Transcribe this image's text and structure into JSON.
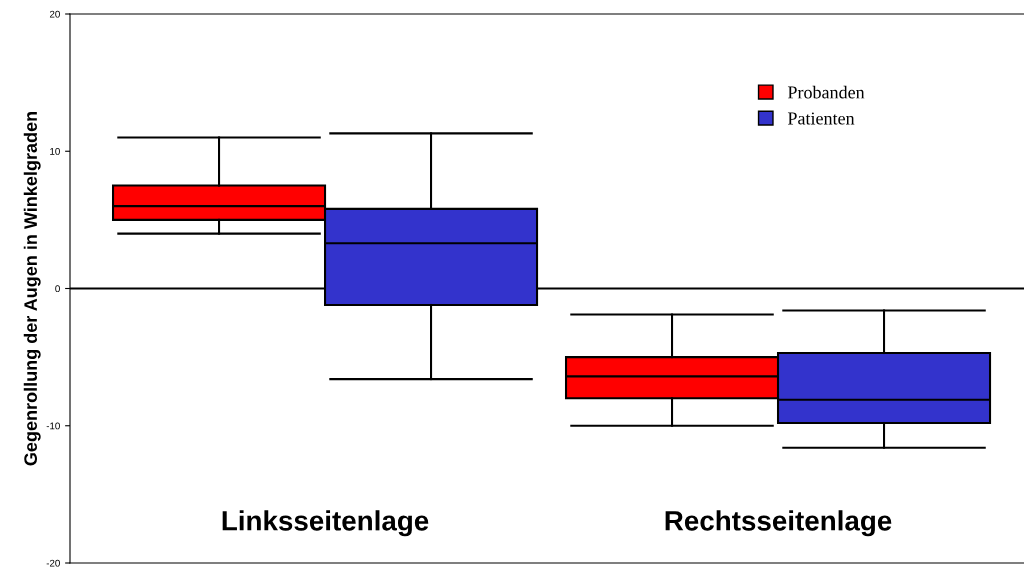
{
  "chart_data": {
    "type": "box",
    "ylabel": "Gegenrollung der Augen in Winkelgraden",
    "categories": [
      "Linksseitenlage",
      "Rechtsseitenlage"
    ],
    "ylim": [
      -20,
      20
    ],
    "yticks": [
      -20,
      -10,
      0,
      10,
      20
    ],
    "legend": "top right",
    "grid": false,
    "ref_lines": [
      {
        "axis": "y",
        "value": 0,
        "label": null,
        "color": "#000000"
      }
    ],
    "series": [
      {
        "name": "Probanden",
        "color": "#ff0000",
        "boxes": [
          {
            "low": 4,
            "q1": 5,
            "median": 6,
            "q3": 7.5,
            "high": 11
          },
          {
            "low": -10,
            "q1": -8,
            "median": -6.4,
            "q3": -5,
            "high": -1.9
          }
        ]
      },
      {
        "name": "Patienten",
        "color": "#3333cc",
        "boxes": [
          {
            "low": -6.6,
            "q1": -1.2,
            "median": 3.3,
            "q3": 5.8,
            "high": 11.3
          },
          {
            "low": -11.6,
            "q1": -9.8,
            "median": -8.1,
            "q3": -4.7,
            "high": -1.6
          }
        ]
      }
    ]
  }
}
